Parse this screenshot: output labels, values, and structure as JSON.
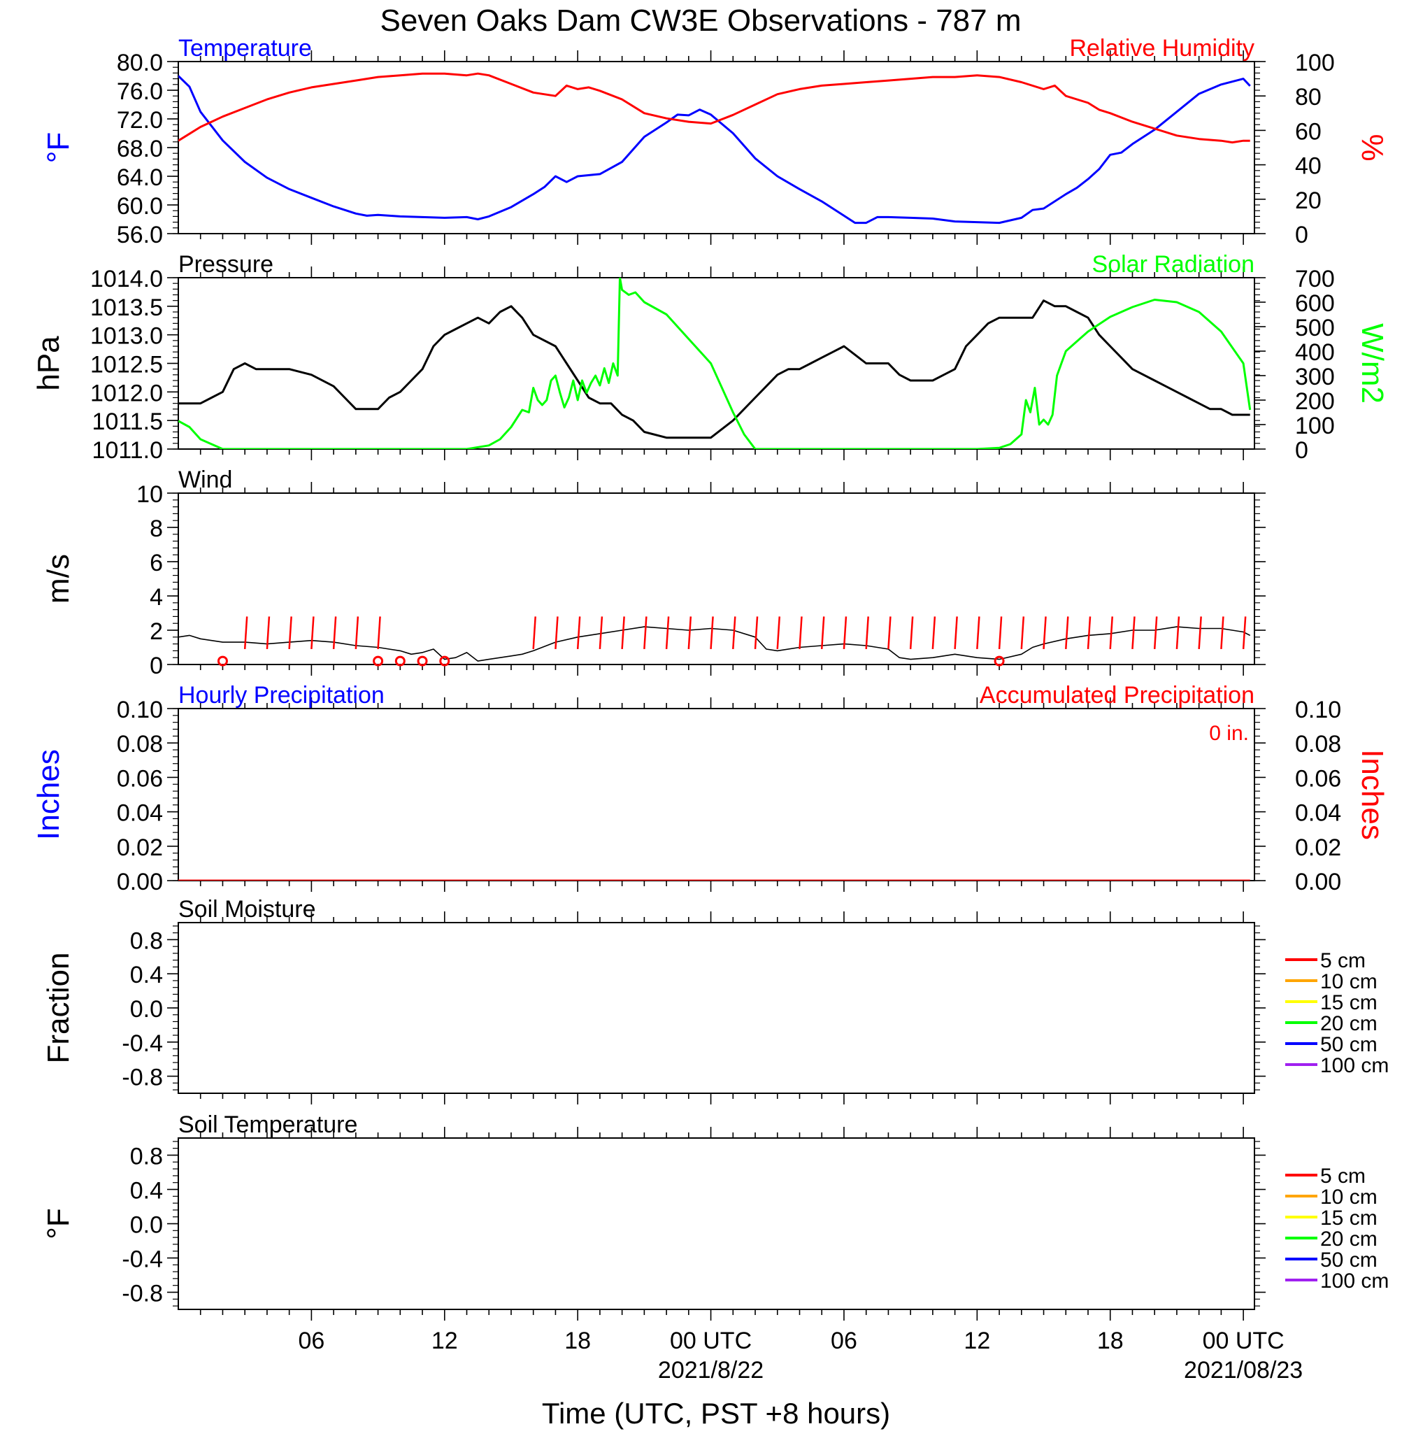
{
  "figure": {
    "title": "Seven Oaks Dam CW3E Observations - 787 m",
    "xlabel": "Time (UTC, PST +8 hours)",
    "x_ticks": [
      {
        "h": 6,
        "label": "06"
      },
      {
        "h": 12,
        "label": "12"
      },
      {
        "h": 18,
        "label": "18"
      },
      {
        "h": 24,
        "label": "00 UTC",
        "sub": "2021/8/22"
      },
      {
        "h": 30,
        "label": "06"
      },
      {
        "h": 36,
        "label": "12"
      },
      {
        "h": 42,
        "label": "18"
      },
      {
        "h": 48,
        "label": "00 UTC",
        "sub": "2021/08/23"
      }
    ],
    "x_range_hours": [
      0,
      48.5
    ],
    "colors": {
      "temperature": "#0000ff",
      "humidity": "#ff0000",
      "pressure": "#000000",
      "solar": "#00ff00",
      "wind": "#000000",
      "barb": "#ff0000"
    }
  },
  "chart_data": [
    {
      "id": "temp-rh",
      "type": "line",
      "title_left": "Temperature",
      "title_right": "Relative Humidity",
      "ylabel_left": "°F",
      "ylabel_right": "%",
      "ylim_left": [
        56,
        80
      ],
      "yticks_left": [
        "56.0",
        "60.0",
        "64.0",
        "68.0",
        "72.0",
        "76.0",
        "80.0"
      ],
      "ylim_right": [
        0,
        100
      ],
      "yticks_right": [
        "0",
        "20",
        "40",
        "60",
        "80",
        "100"
      ],
      "series": [
        {
          "name": "Temperature",
          "axis": "left",
          "color": "#0000ff",
          "x": [
            0,
            0.5,
            1,
            1.5,
            2,
            3,
            4,
            5,
            6,
            7,
            8,
            8.5,
            9,
            10,
            11,
            12,
            13,
            13.5,
            14,
            15,
            16,
            16.5,
            17,
            17.5,
            18,
            19,
            20,
            21,
            22,
            22.5,
            23,
            23.5,
            24,
            25,
            26,
            27,
            28,
            29,
            30,
            30.5,
            31,
            31.5,
            32,
            33,
            34,
            35,
            36,
            37,
            38,
            38.5,
            39,
            40,
            40.5,
            41,
            41.5,
            42,
            42.5,
            43,
            44,
            45,
            46,
            47,
            47.5,
            48,
            48.3
          ],
          "y": [
            78,
            76.5,
            73,
            71,
            69,
            66,
            63.8,
            62.2,
            61,
            59.8,
            58.8,
            58.5,
            58.6,
            58.4,
            58.3,
            58.2,
            58.3,
            58,
            58.4,
            59.7,
            61.5,
            62.5,
            64,
            63.2,
            64,
            64.3,
            66,
            69.5,
            71.5,
            72.6,
            72.5,
            73.3,
            72.6,
            70,
            66.5,
            64,
            62.2,
            60.5,
            58.5,
            57.5,
            57.5,
            58.3,
            58.3,
            58.2,
            58.1,
            57.7,
            57.6,
            57.5,
            58.2,
            59.3,
            59.5,
            61.5,
            62.4,
            63.6,
            65,
            67,
            67.3,
            68.5,
            70.5,
            73,
            75.5,
            76.8,
            77.2,
            77.6,
            76.6
          ]
        },
        {
          "name": "Relative Humidity",
          "axis": "right",
          "color": "#ff0000",
          "x": [
            0,
            0.5,
            1,
            1.5,
            2,
            3,
            4,
            5,
            6,
            7,
            8,
            9,
            10,
            11,
            12,
            13,
            13.5,
            14,
            15,
            16,
            17,
            17.5,
            18,
            18.5,
            19,
            20,
            21,
            22,
            23,
            24,
            25,
            26,
            27,
            28,
            29,
            30,
            31,
            32,
            33,
            34,
            35,
            36,
            37,
            38,
            39,
            39.5,
            40,
            41,
            41.5,
            42,
            43,
            44,
            45,
            46,
            47,
            47.5,
            48,
            48.3
          ],
          "y": [
            54,
            58,
            62,
            65,
            68,
            73,
            78,
            82,
            85,
            87,
            89,
            91,
            92,
            93,
            93,
            92,
            93,
            92,
            87,
            82,
            80,
            86,
            84,
            85,
            83,
            78,
            70,
            67,
            65,
            64,
            69,
            75,
            81,
            84,
            86,
            87,
            88,
            89,
            90,
            91,
            91,
            92,
            91,
            88,
            84,
            86,
            80,
            76,
            72,
            70,
            65,
            61,
            57,
            55,
            54,
            53,
            54,
            54
          ]
        }
      ]
    },
    {
      "id": "pressure-solar",
      "type": "line",
      "title_left": "Pressure",
      "title_right": "Solar Radiation",
      "ylabel_left": "hPa",
      "ylabel_right": "W/m2",
      "ylim_left": [
        1011,
        1014
      ],
      "yticks_left": [
        "1011.0",
        "1011.5",
        "1012.0",
        "1012.5",
        "1013.0",
        "1013.5",
        "1014.0"
      ],
      "ylim_right": [
        0,
        700
      ],
      "yticks_right": [
        "0",
        "100",
        "200",
        "300",
        "400",
        "500",
        "600",
        "700"
      ],
      "series": [
        {
          "name": "Pressure",
          "axis": "left",
          "color": "#000000",
          "x": [
            0,
            1,
            1.5,
            2,
            2.5,
            3,
            3.5,
            4,
            5,
            6,
            7,
            7.5,
            8,
            9,
            9.5,
            10,
            10.5,
            11,
            11.5,
            12,
            12.5,
            13,
            13.5,
            14,
            14.5,
            15,
            15.5,
            16,
            17,
            17.5,
            18,
            18.5,
            19,
            19.5,
            20,
            20.5,
            21,
            22,
            23,
            23.5,
            24,
            25,
            26,
            26.5,
            27,
            27.5,
            28,
            28.5,
            29,
            29.5,
            30,
            31,
            32,
            32.5,
            33,
            33.5,
            34,
            34.5,
            35,
            35.5,
            36,
            36.5,
            37,
            37.5,
            38,
            38.5,
            39,
            39.5,
            40,
            40.5,
            41,
            41.5,
            42,
            42.5,
            43,
            44,
            44.5,
            45,
            45.5,
            46,
            46.5,
            47,
            47.5,
            48,
            48.3
          ],
          "y": [
            1011.8,
            1011.8,
            1011.9,
            1012.0,
            1012.4,
            1012.5,
            1012.4,
            1012.4,
            1012.4,
            1012.3,
            1012.1,
            1011.9,
            1011.7,
            1011.7,
            1011.9,
            1012.0,
            1012.2,
            1012.4,
            1012.8,
            1013.0,
            1013.1,
            1013.2,
            1013.3,
            1013.2,
            1013.4,
            1013.5,
            1013.3,
            1013.0,
            1012.8,
            1012.5,
            1012.2,
            1011.9,
            1011.8,
            1011.8,
            1011.6,
            1011.5,
            1011.3,
            1011.2,
            1011.2,
            1011.2,
            1011.2,
            1011.5,
            1011.9,
            1012.1,
            1012.3,
            1012.4,
            1012.4,
            1012.5,
            1012.6,
            1012.7,
            1012.8,
            1012.5,
            1012.5,
            1012.3,
            1012.2,
            1012.2,
            1012.2,
            1012.3,
            1012.4,
            1012.8,
            1013.0,
            1013.2,
            1013.3,
            1013.3,
            1013.3,
            1013.3,
            1013.6,
            1013.5,
            1013.5,
            1013.4,
            1013.3,
            1013.0,
            1012.8,
            1012.6,
            1012.4,
            1012.2,
            1012.1,
            1012.0,
            1011.9,
            1011.8,
            1011.7,
            1011.7,
            1011.6,
            1011.6,
            1011.6
          ]
        },
        {
          "name": "Solar Radiation",
          "axis": "right",
          "color": "#00ff00",
          "x": [
            0,
            0.5,
            1,
            2,
            5,
            10,
            12,
            12.5,
            13,
            14,
            14.5,
            15,
            15.5,
            15.8,
            16,
            16.2,
            16.4,
            16.6,
            16.8,
            17,
            17.2,
            17.4,
            17.6,
            17.8,
            18,
            18.2,
            18.4,
            18.6,
            18.8,
            19,
            19.2,
            19.4,
            19.6,
            19.8,
            19.9,
            20,
            20.3,
            20.6,
            21,
            22,
            23,
            24,
            25,
            25.5,
            26,
            27,
            30,
            34,
            36,
            37,
            37.5,
            38,
            38.2,
            38.4,
            38.6,
            38.8,
            39,
            39.2,
            39.4,
            39.6,
            39.8,
            40,
            40.5,
            41,
            42,
            43,
            44,
            45,
            46,
            47,
            48,
            48.3
          ],
          "y": [
            115,
            90,
            40,
            0,
            0,
            0,
            0,
            0,
            0,
            15,
            40,
            90,
            160,
            150,
            250,
            200,
            180,
            200,
            280,
            300,
            230,
            170,
            210,
            280,
            200,
            280,
            230,
            270,
            300,
            260,
            330,
            270,
            350,
            300,
            700,
            650,
            630,
            640,
            600,
            550,
            450,
            350,
            150,
            60,
            0,
            0,
            0,
            0,
            0,
            5,
            20,
            60,
            200,
            150,
            250,
            100,
            120,
            100,
            140,
            300,
            350,
            400,
            440,
            480,
            540,
            580,
            610,
            600,
            560,
            480,
            350,
            160
          ]
        }
      ]
    },
    {
      "id": "wind",
      "type": "line",
      "title_left": "Wind",
      "ylabel_left": "m/s",
      "ylim_left": [
        0,
        10
      ],
      "yticks_left": [
        "0",
        "2",
        "4",
        "6",
        "8",
        "10"
      ],
      "series": [
        {
          "name": "Wind",
          "axis": "left",
          "color": "#000000",
          "x": [
            0,
            0.5,
            1,
            2,
            3,
            4,
            5,
            6,
            7,
            8,
            9,
            9.5,
            10,
            10.5,
            11,
            11.5,
            12,
            12.5,
            13,
            13.5,
            14,
            15,
            15.5,
            16,
            17,
            18,
            19,
            20,
            21,
            22,
            23,
            24,
            25,
            26,
            26.5,
            27,
            28,
            29,
            30,
            31,
            32,
            32.5,
            33,
            34,
            35,
            36,
            37,
            38,
            38.5,
            39,
            40,
            41,
            42,
            43,
            44,
            45,
            46,
            47,
            48,
            48.3
          ],
          "y": [
            1.6,
            1.7,
            1.5,
            1.3,
            1.3,
            1.2,
            1.3,
            1.4,
            1.3,
            1.1,
            1.0,
            0.9,
            0.8,
            0.6,
            0.7,
            0.9,
            0.3,
            0.4,
            0.7,
            0.2,
            0.3,
            0.5,
            0.6,
            0.8,
            1.3,
            1.6,
            1.8,
            2.0,
            2.2,
            2.1,
            2.0,
            2.1,
            2.0,
            1.6,
            0.9,
            0.8,
            1.0,
            1.1,
            1.2,
            1.1,
            0.9,
            0.4,
            0.3,
            0.4,
            0.6,
            0.4,
            0.3,
            0.6,
            1.0,
            1.2,
            1.5,
            1.7,
            1.8,
            2.0,
            2.0,
            2.2,
            2.1,
            2.1,
            1.9,
            1.7
          ]
        }
      ],
      "barbs_hours": [
        3,
        4,
        5,
        6,
        7,
        8,
        9,
        16,
        17,
        18,
        19,
        20,
        21,
        22,
        23,
        24,
        25,
        26,
        27,
        28,
        29,
        30,
        31,
        32,
        33,
        34,
        35,
        36,
        37,
        38,
        39,
        40,
        41,
        42,
        43,
        44,
        45,
        46,
        47,
        48
      ],
      "calm_hours": [
        2,
        9,
        10,
        11,
        12,
        37
      ]
    },
    {
      "id": "precip",
      "type": "line",
      "title_left": "Hourly Precipitation",
      "title_right": "Accumulated Precipitation",
      "annotation": "0 in.",
      "ylabel_left": "Inches",
      "ylabel_right": "Inches",
      "ylim_left": [
        0,
        0.1
      ],
      "yticks_left": [
        "0.00",
        "0.02",
        "0.04",
        "0.06",
        "0.08",
        "0.10"
      ],
      "ylim_right": [
        0,
        0.1
      ],
      "yticks_right": [
        "0.00",
        "0.02",
        "0.04",
        "0.06",
        "0.08",
        "0.10"
      ],
      "series": [
        {
          "name": "Hourly Precipitation",
          "axis": "left",
          "color": "#0000ff",
          "x": [
            0,
            48.3
          ],
          "y": [
            0,
            0
          ]
        },
        {
          "name": "Accumulated Precipitation",
          "axis": "right",
          "color": "#ff0000",
          "x": [
            0,
            48.3
          ],
          "y": [
            0,
            0
          ]
        }
      ]
    },
    {
      "id": "soil-moisture",
      "type": "line",
      "title_left": "Soil Moisture",
      "ylabel_left": "Fraction",
      "ylim_left": [
        -1,
        1
      ],
      "yticks_left": [
        "-0.8",
        "-0.4",
        "0.0",
        "0.4",
        "0.8"
      ],
      "legend": [
        {
          "label": "5 cm",
          "color": "#ff0000"
        },
        {
          "label": "10 cm",
          "color": "#ffa500"
        },
        {
          "label": "15 cm",
          "color": "#ffff00"
        },
        {
          "label": "20 cm",
          "color": "#00ff00"
        },
        {
          "label": "50 cm",
          "color": "#0000ff"
        },
        {
          "label": "100 cm",
          "color": "#a020f0"
        }
      ]
    },
    {
      "id": "soil-temperature",
      "type": "line",
      "title_left": "Soil Temperature",
      "ylabel_left": "°F",
      "ylim_left": [
        -1,
        1
      ],
      "yticks_left": [
        "-0.8",
        "-0.4",
        "0.0",
        "0.4",
        "0.8"
      ],
      "legend": [
        {
          "label": "5 cm",
          "color": "#ff0000"
        },
        {
          "label": "10 cm",
          "color": "#ffa500"
        },
        {
          "label": "15 cm",
          "color": "#ffff00"
        },
        {
          "label": "20 cm",
          "color": "#00ff00"
        },
        {
          "label": "50 cm",
          "color": "#0000ff"
        },
        {
          "label": "100 cm",
          "color": "#a020f0"
        }
      ]
    }
  ]
}
